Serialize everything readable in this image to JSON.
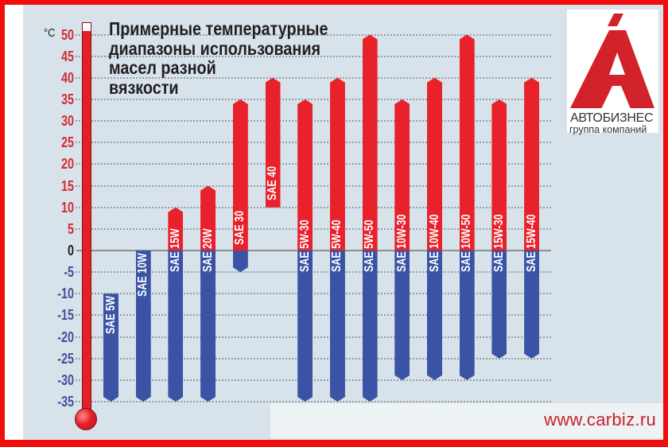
{
  "title": {
    "lines": [
      "Примерные температурные",
      "диапазоны использования",
      "масел разной",
      "вязкости"
    ]
  },
  "axis": {
    "unit": "°C"
  },
  "logo": {
    "icon": "stylized-letter-a-with-accent-icon",
    "brand": "АВТОБИЗНЕС",
    "tagline": "группа компаний",
    "color": "#d2232a"
  },
  "footer": {
    "website": "www.carbiz.ru"
  },
  "colors": {
    "border": "#f20c0c",
    "positive_range": "#e8212a",
    "negative_range": "#3a53a4",
    "tick_positive": "#d42a33",
    "tick_zero": "#1f1f1f",
    "tick_negative": "#3f5196",
    "background": "#d7e2ea"
  },
  "chart_data": {
    "type": "bar",
    "subtype": "floating-range",
    "title": "Примерные температурные диапазоны использования масел разной вязкости",
    "xlabel": "",
    "ylabel": "°C",
    "ylim": [
      -35,
      50
    ],
    "grid": true,
    "legend": null,
    "yticks": [
      50,
      45,
      40,
      35,
      30,
      25,
      20,
      15,
      10,
      5,
      0,
      -5,
      -10,
      -15,
      -20,
      -25,
      -30,
      -35
    ],
    "categories": [
      "SAE 5W",
      "SAE 10W",
      "SAE 15W",
      "SAE 20W",
      "SAE 30",
      "SAE 40",
      "SAE 5W-30",
      "SAE 5W-40",
      "SAE 5W-50",
      "SAE 10W-30",
      "SAE 10W-40",
      "SAE 10W-50",
      "SAE 15W-30",
      "SAE 15W-40"
    ],
    "series": [
      {
        "name": "min_temp_C",
        "values": [
          -35,
          -35,
          -35,
          -35,
          -5,
          10,
          -35,
          -35,
          -35,
          -30,
          -30,
          -30,
          -25,
          -25
        ]
      },
      {
        "name": "max_temp_C",
        "values": [
          -10,
          0,
          10,
          15,
          35,
          40,
          35,
          40,
          50,
          35,
          40,
          50,
          35,
          40
        ]
      }
    ],
    "bars": [
      {
        "label": "SAE 5W",
        "min": -35,
        "max": -10
      },
      {
        "label": "SAE 10W",
        "min": -35,
        "max": 0
      },
      {
        "label": "SAE 15W",
        "min": -35,
        "max": 10
      },
      {
        "label": "SAE 20W",
        "min": -35,
        "max": 15
      },
      {
        "label": "SAE 30",
        "min": -5,
        "max": 35
      },
      {
        "label": "SAE 40",
        "min": 10,
        "max": 40
      },
      {
        "label": "SAE 5W-30",
        "min": -35,
        "max": 35
      },
      {
        "label": "SAE 5W-40",
        "min": -35,
        "max": 40
      },
      {
        "label": "SAE 5W-50",
        "min": -35,
        "max": 50
      },
      {
        "label": "SAE 10W-30",
        "min": -30,
        "max": 35
      },
      {
        "label": "SAE 10W-40",
        "min": -30,
        "max": 40
      },
      {
        "label": "SAE 10W-50",
        "min": -30,
        "max": 50
      },
      {
        "label": "SAE 15W-30",
        "min": -25,
        "max": 35
      },
      {
        "label": "SAE 15W-40",
        "min": -25,
        "max": 40
      }
    ]
  }
}
